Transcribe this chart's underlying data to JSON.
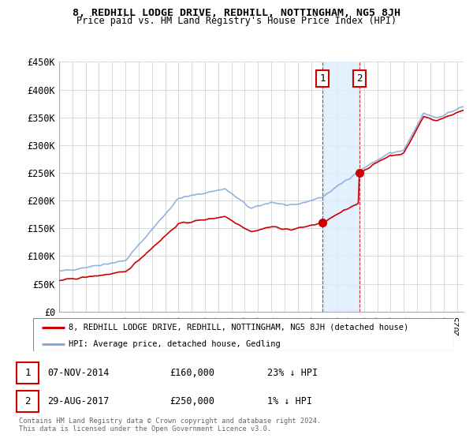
{
  "title": "8, REDHILL LODGE DRIVE, REDHILL, NOTTINGHAM, NG5 8JH",
  "subtitle": "Price paid vs. HM Land Registry's House Price Index (HPI)",
  "ylim": [
    0,
    450000
  ],
  "yticks": [
    0,
    50000,
    100000,
    150000,
    200000,
    250000,
    300000,
    350000,
    400000,
    450000
  ],
  "ytick_labels": [
    "£0",
    "£50K",
    "£100K",
    "£150K",
    "£200K",
    "£250K",
    "£300K",
    "£350K",
    "£400K",
    "£450K"
  ],
  "xlim_start": 1995.0,
  "xlim_end": 2025.5,
  "red_line_color": "#cc0000",
  "blue_line_color": "#88aadd",
  "sale1_x": 2014.85,
  "sale1_y": 160000,
  "sale2_x": 2017.65,
  "sale2_y": 250000,
  "shaded_region_color": "#ddeeff",
  "legend_line1": "8, REDHILL LODGE DRIVE, REDHILL, NOTTINGHAM, NG5 8JH (detached house)",
  "legend_line2": "HPI: Average price, detached house, Gedling",
  "table_row1": [
    "1",
    "07-NOV-2014",
    "£160,000",
    "23% ↓ HPI"
  ],
  "table_row2": [
    "2",
    "29-AUG-2017",
    "£250,000",
    "1% ↓ HPI"
  ],
  "footer1": "Contains HM Land Registry data © Crown copyright and database right 2024.",
  "footer2": "This data is licensed under the Open Government Licence v3.0.",
  "background_color": "#ffffff",
  "plot_bg_color": "#ffffff",
  "grid_color": "#cccccc"
}
